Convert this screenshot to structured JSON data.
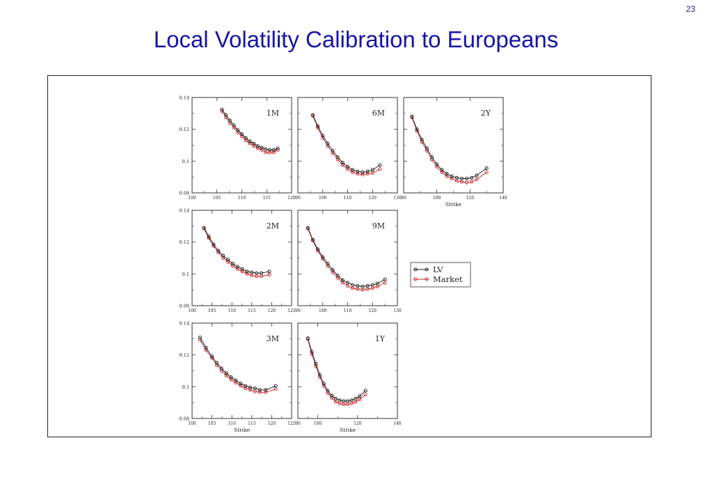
{
  "page_number": "23",
  "title": "Local Volatility Calibration to Europeans",
  "chart_data": {
    "type": "line",
    "xlabel": "Strike",
    "series_names": [
      "LV",
      "Market"
    ],
    "colors": {
      "LV": "#1a1a1a",
      "Market": "#cc2222"
    },
    "legend": {
      "placement": "middle-right",
      "entries": [
        "LV",
        "Market"
      ]
    },
    "ylim": [
      0.08,
      0.14
    ],
    "y_ticks": [
      "0.14",
      "0.12",
      "0.1",
      "0.08"
    ],
    "panels": [
      {
        "label": "1M",
        "xlim": [
          100,
          120
        ],
        "x_ticks": [
          "100",
          "105",
          "110",
          "115",
          "120"
        ],
        "x": [
          106,
          106.8,
          107.6,
          108.4,
          109.2,
          110,
          110.8,
          111.6,
          112.4,
          113.2,
          114,
          114.8,
          115.6,
          116.4,
          117.2
        ],
        "LV": [
          0.1325,
          0.129,
          0.1255,
          0.1225,
          0.1195,
          0.117,
          0.1145,
          0.1125,
          0.111,
          0.1095,
          0.1085,
          0.1075,
          0.107,
          0.107,
          0.108
        ],
        "Market": [
          0.1315,
          0.1275,
          0.124,
          0.121,
          0.118,
          0.1155,
          0.113,
          0.111,
          0.1095,
          0.108,
          0.107,
          0.1055,
          0.1055,
          0.1055,
          0.107
        ]
      },
      {
        "label": "6M",
        "xlim": [
          90,
          130
        ],
        "x_ticks": [
          "90",
          "100",
          "110",
          "120",
          "130"
        ],
        "x": [
          96,
          98,
          100,
          102,
          104,
          106,
          108,
          110,
          112,
          114,
          116,
          118,
          120,
          123
        ],
        "LV": [
          0.129,
          0.122,
          0.116,
          0.111,
          0.1065,
          0.1025,
          0.099,
          0.0965,
          0.0945,
          0.0935,
          0.093,
          0.0935,
          0.0945,
          0.0975
        ],
        "Market": [
          0.1285,
          0.121,
          0.1145,
          0.1095,
          0.105,
          0.101,
          0.0975,
          0.095,
          0.093,
          0.092,
          0.0915,
          0.092,
          0.0925,
          0.095
        ]
      },
      {
        "label": "2Y",
        "xlim": [
          80,
          140
        ],
        "x_ticks": [
          "80",
          "100",
          "120",
          "140"
        ],
        "x": [
          85,
          88,
          91,
          94,
          97,
          100,
          103,
          106,
          109,
          112,
          115,
          118,
          121,
          124,
          130
        ],
        "LV": [
          0.128,
          0.12,
          0.1135,
          0.108,
          0.1025,
          0.098,
          0.0945,
          0.092,
          0.0905,
          0.0895,
          0.089,
          0.089,
          0.0895,
          0.091,
          0.0955
        ],
        "Market": [
          0.1275,
          0.119,
          0.112,
          0.1065,
          0.101,
          0.0965,
          0.093,
          0.0905,
          0.089,
          0.0875,
          0.087,
          0.0865,
          0.087,
          0.0885,
          0.093
        ]
      },
      {
        "label": "2M",
        "xlim": [
          100,
          125
        ],
        "x_ticks": [
          "100",
          "105",
          "110",
          "115",
          "120",
          "125"
        ],
        "x": [
          103,
          104.2,
          105.4,
          106.6,
          107.8,
          109,
          110.2,
          111.4,
          112.6,
          113.8,
          115,
          116.2,
          117.4,
          119.4
        ],
        "LV": [
          0.129,
          0.1235,
          0.1185,
          0.1145,
          0.1115,
          0.109,
          0.1065,
          0.1045,
          0.103,
          0.1015,
          0.101,
          0.1005,
          0.1005,
          0.1015
        ],
        "Market": [
          0.1285,
          0.1225,
          0.1175,
          0.1135,
          0.11,
          0.1075,
          0.105,
          0.103,
          0.1015,
          0.1,
          0.099,
          0.0985,
          0.0985,
          0.0995
        ]
      },
      {
        "label": "9M",
        "xlim": [
          90,
          130
        ],
        "x_ticks": [
          "90",
          "100",
          "110",
          "120",
          "130"
        ],
        "x": [
          94,
          96,
          98,
          100,
          102,
          104,
          106,
          108,
          110,
          112,
          114,
          116,
          118,
          120,
          122,
          125
        ],
        "LV": [
          0.129,
          0.1215,
          0.1155,
          0.1105,
          0.1065,
          0.1025,
          0.099,
          0.096,
          0.0945,
          0.093,
          0.0925,
          0.092,
          0.0925,
          0.093,
          0.094,
          0.0965
        ],
        "Market": [
          0.1285,
          0.121,
          0.1145,
          0.1095,
          0.105,
          0.101,
          0.0975,
          0.0945,
          0.0925,
          0.091,
          0.0905,
          0.09,
          0.0905,
          0.091,
          0.092,
          0.0945
        ]
      },
      {
        "label": "3M",
        "xlim": [
          100,
          125
        ],
        "x_ticks": [
          "100",
          "105",
          "110",
          "115",
          "120",
          "125"
        ],
        "x": [
          102,
          103.5,
          105,
          106.2,
          107.4,
          108.6,
          109.8,
          111,
          112.2,
          113.4,
          114.6,
          115.8,
          117,
          118.5,
          121
        ],
        "LV": [
          0.131,
          0.1245,
          0.119,
          0.115,
          0.1115,
          0.1085,
          0.106,
          0.104,
          0.102,
          0.1005,
          0.0995,
          0.099,
          0.098,
          0.098,
          0.1005
        ],
        "Market": [
          0.1295,
          0.123,
          0.118,
          0.1135,
          0.11,
          0.107,
          0.1045,
          0.1025,
          0.1005,
          0.099,
          0.098,
          0.097,
          0.0965,
          0.0965,
          0.0985
        ]
      },
      {
        "label": "1Y",
        "xlim": [
          90,
          140
        ],
        "x_ticks": [
          "90",
          "100",
          "120",
          "140"
        ],
        "x": [
          95,
          97,
          99,
          101,
          103,
          105,
          107,
          109,
          111,
          113,
          115,
          117,
          119,
          121,
          124
        ],
        "LV": [
          0.1305,
          0.122,
          0.1145,
          0.1075,
          0.102,
          0.0975,
          0.0945,
          0.0925,
          0.0915,
          0.091,
          0.091,
          0.0915,
          0.0925,
          0.094,
          0.0975
        ],
        "Market": [
          0.13,
          0.1205,
          0.113,
          0.106,
          0.1005,
          0.096,
          0.093,
          0.0905,
          0.0895,
          0.089,
          0.089,
          0.0895,
          0.0905,
          0.092,
          0.095
        ]
      }
    ]
  }
}
